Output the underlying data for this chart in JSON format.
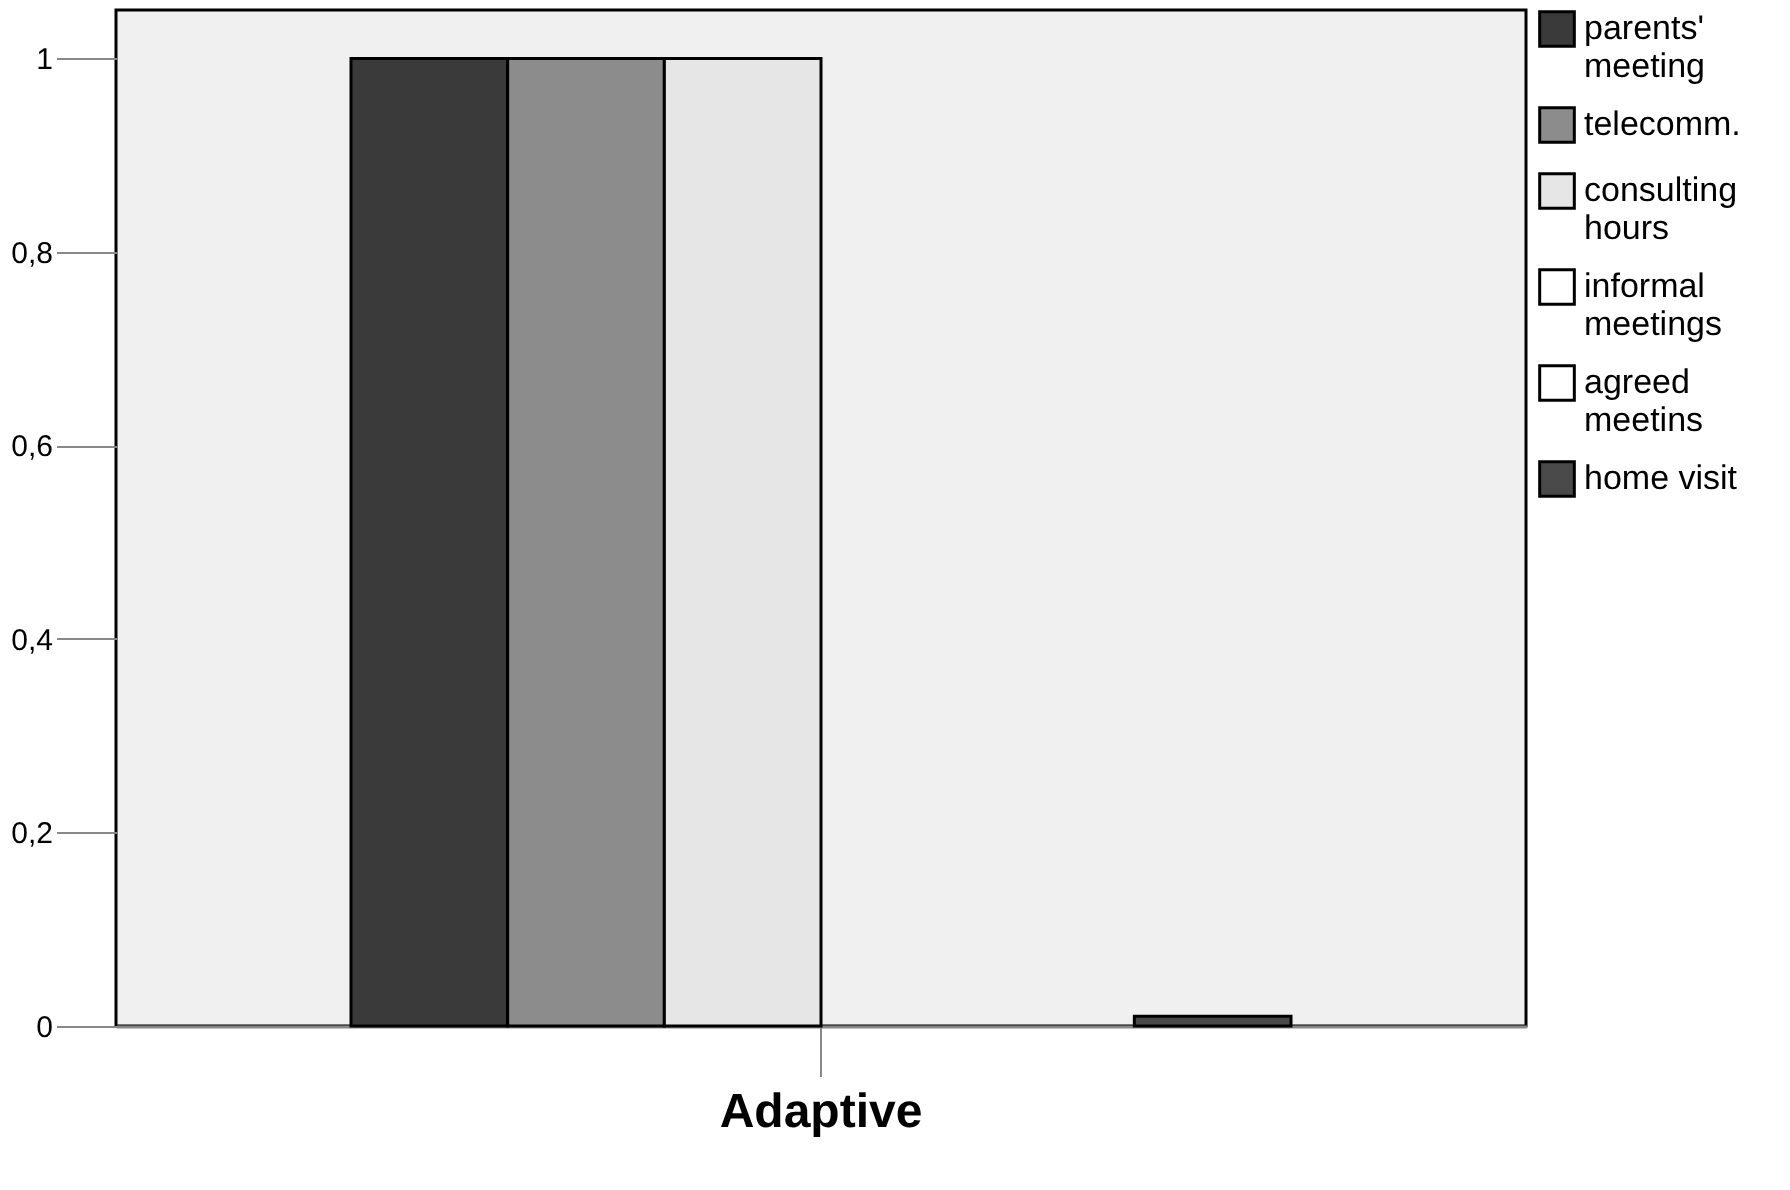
{
  "chart_data": {
    "type": "bar",
    "categories": [
      "Adaptive"
    ],
    "series": [
      {
        "name": "parents' meeting",
        "color": "#3a3a3a",
        "values": [
          1
        ]
      },
      {
        "name": "telecomm.",
        "color": "#8c8c8c",
        "values": [
          1
        ]
      },
      {
        "name": "consulting hours",
        "color": "#e6e6e6",
        "values": [
          1
        ]
      },
      {
        "name": "informal meetings",
        "color": "#ffffff",
        "values": [
          0
        ]
      },
      {
        "name": "agreed meetins",
        "color": "#ffffff",
        "values": [
          0
        ]
      },
      {
        "name": "home visit",
        "color": "#4a4a4a",
        "values": [
          0.01
        ]
      }
    ],
    "ylim": [
      0,
      1.05
    ],
    "yticks": [
      0,
      {
        "value": 0.2,
        "label": "0,2"
      },
      {
        "value": 0.4,
        "label": "0,4"
      },
      {
        "value": 0.6,
        "label": "0,6"
      },
      {
        "value": 0.8,
        "label": "0,8"
      },
      1
    ],
    "grid": false,
    "legend": "right"
  }
}
